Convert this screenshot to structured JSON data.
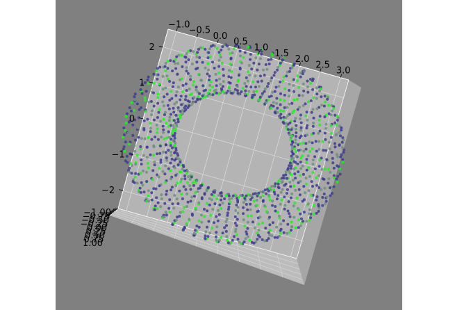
{
  "colors": {
    "figure_background": "#ffffff",
    "axes_background": "#808080",
    "pane_back": "#b4b4b4",
    "pane_side": "#a6a6a6",
    "pane_bottom": "#bcbcbc",
    "grid": "#d9d9d9",
    "series_dark": "#3f3b8f",
    "series_green": "#22ee22",
    "series_gray": "#6e8f7e"
  },
  "chart_data": {
    "type": "scatter",
    "projection": "3d",
    "description_shape": "torus of sampled points, colored in three groups",
    "title": "",
    "xlabel": "",
    "ylabel": "",
    "zlabel": "",
    "x_ticks": [
      "−1.0",
      "−0.5",
      "0.0",
      "0.5",
      "1.0",
      "1.5",
      "2.0",
      "2.5",
      "3.0"
    ],
    "z_ticks": [
      "2",
      "1",
      "0",
      "−1",
      "−2"
    ],
    "y_ticks": [
      "−1.00",
      "−0.75",
      "−0.50",
      "−0.25",
      "0.00",
      "0.25",
      "0.50",
      "0.75",
      "1.00"
    ],
    "xlim": [
      -1.2,
      3.2
    ],
    "zlim": [
      -2.5,
      2.5
    ],
    "ylim": [
      -1.0,
      1.0
    ],
    "grid": true,
    "torus": {
      "major_radius": 2.0,
      "minor_radius": 0.6,
      "center": [
        1.0,
        0.0,
        0.0
      ]
    },
    "series": [
      {
        "color": "#3f3b8f"
      },
      {
        "color": "#22ee22"
      },
      {
        "color": "#6e8f7e"
      }
    ]
  }
}
